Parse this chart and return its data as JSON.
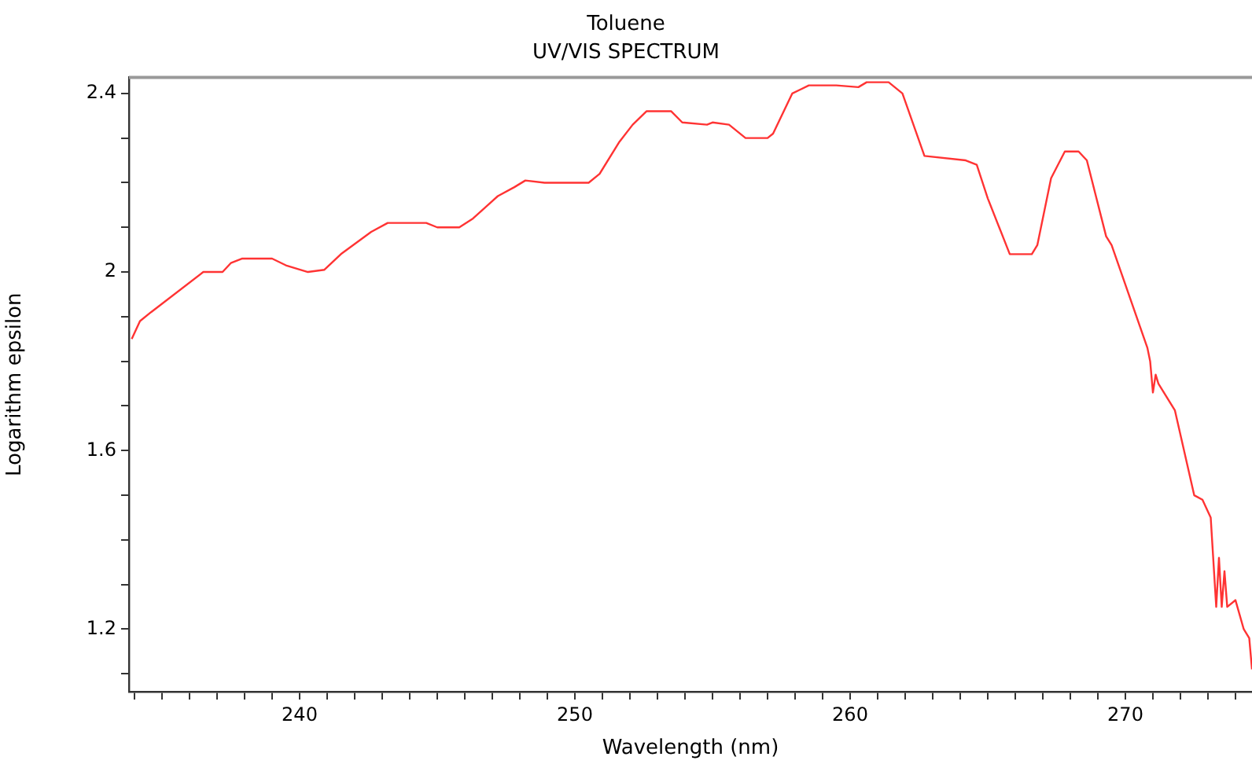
{
  "chart_data": {
    "type": "line",
    "title": "Toluene",
    "subtitle": "UV/VIS SPECTRUM",
    "xlabel": "Wavelength (nm)",
    "ylabel": "Logarithm epsilon",
    "x": [
      233.9,
      234.2,
      234.6,
      236.5,
      237.2,
      237.5,
      237.9,
      239.0,
      239.5,
      240.3,
      240.9,
      241.5,
      242.6,
      243.2,
      244.6,
      245.0,
      245.8,
      246.3,
      247.2,
      247.8,
      248.2,
      248.9,
      249.5,
      250.5,
      250.9,
      251.6,
      252.1,
      252.6,
      253.2,
      253.5,
      253.9,
      254.8,
      255.0,
      255.6,
      256.2,
      257.0,
      257.2,
      257.9,
      258.5,
      259.5,
      260.3,
      260.6,
      261.4,
      261.9,
      262.7,
      264.2,
      264.6,
      265.0,
      265.8,
      266.6,
      266.8,
      267.3,
      267.8,
      268.3,
      268.6,
      269.3,
      269.5,
      270.8,
      270.9,
      271.0,
      271.1,
      271.2,
      271.8,
      272.5,
      272.8,
      273.1,
      273.3,
      273.4,
      273.5,
      273.6,
      273.7,
      274.0,
      274.3,
      274.5,
      274.6
    ],
    "series": [
      {
        "color": "#ff3333",
        "values": [
          1.85,
          1.89,
          1.91,
          2.0,
          2.0,
          2.02,
          2.03,
          2.03,
          2.015,
          2.0,
          2.005,
          2.04,
          2.09,
          2.11,
          2.11,
          2.1,
          2.1,
          2.12,
          2.17,
          2.19,
          2.205,
          2.2,
          2.2,
          2.2,
          2.22,
          2.29,
          2.33,
          2.36,
          2.36,
          2.36,
          2.335,
          2.33,
          2.335,
          2.33,
          2.3,
          2.3,
          2.31,
          2.4,
          2.418,
          2.418,
          2.414,
          2.425,
          2.425,
          2.4,
          2.26,
          2.25,
          2.24,
          2.165,
          2.04,
          2.04,
          2.06,
          2.21,
          2.27,
          2.27,
          2.25,
          2.08,
          2.06,
          1.83,
          1.8,
          1.73,
          1.77,
          1.75,
          1.69,
          1.5,
          1.49,
          1.45,
          1.25,
          1.36,
          1.25,
          1.33,
          1.25,
          1.265,
          1.2,
          1.18,
          1.11
        ]
      }
    ],
    "xlim": [
      233.8,
      274.6
    ],
    "xticks": [
      {
        "value": 234,
        "label": null
      },
      {
        "value": 235,
        "label": null
      },
      {
        "value": 236,
        "label": null
      },
      {
        "value": 237,
        "label": null
      },
      {
        "value": 238,
        "label": null
      },
      {
        "value": 239,
        "label": null
      },
      240,
      {
        "value": 241,
        "label": null
      },
      {
        "value": 242,
        "label": null
      },
      {
        "value": 243,
        "label": null
      },
      {
        "value": 244,
        "label": null
      },
      {
        "value": 245,
        "label": null
      },
      {
        "value": 246,
        "label": null
      },
      {
        "value": 247,
        "label": null
      },
      {
        "value": 248,
        "label": null
      },
      {
        "value": 249,
        "label": null
      },
      250,
      {
        "value": 251,
        "label": null
      },
      {
        "value": 252,
        "label": null
      },
      {
        "value": 253,
        "label": null
      },
      {
        "value": 254,
        "label": null
      },
      {
        "value": 255,
        "label": null
      },
      {
        "value": 256,
        "label": null
      },
      {
        "value": 257,
        "label": null
      },
      {
        "value": 258,
        "label": null
      },
      {
        "value": 259,
        "label": null
      },
      260,
      {
        "value": 261,
        "label": null
      },
      {
        "value": 262,
        "label": null
      },
      {
        "value": 263,
        "label": null
      },
      {
        "value": 264,
        "label": null
      },
      {
        "value": 265,
        "label": null
      },
      {
        "value": 266,
        "label": null
      },
      {
        "value": 267,
        "label": null
      },
      {
        "value": 268,
        "label": null
      },
      {
        "value": 269,
        "label": null
      },
      270,
      {
        "value": 271,
        "label": null
      },
      {
        "value": 272,
        "label": null
      },
      {
        "value": 273,
        "label": null
      },
      {
        "value": 274,
        "label": null
      }
    ],
    "ylim": [
      1.06,
      2.436
    ],
    "yticks": [
      {
        "value": 1.1,
        "label": null
      },
      1.2,
      {
        "value": 1.3,
        "label": null
      },
      {
        "value": 1.4,
        "label": null
      },
      {
        "value": 1.5,
        "label": null
      },
      1.6,
      {
        "value": 1.7,
        "label": null
      },
      {
        "value": 1.8,
        "label": null
      },
      {
        "value": 1.9,
        "label": null
      },
      2,
      {
        "value": 2.1,
        "label": null
      },
      {
        "value": 2.2,
        "label": null
      },
      {
        "value": 2.3,
        "label": null
      },
      2.4
    ],
    "grid": false,
    "legend": false,
    "marker": "none",
    "line_style": "solid"
  }
}
